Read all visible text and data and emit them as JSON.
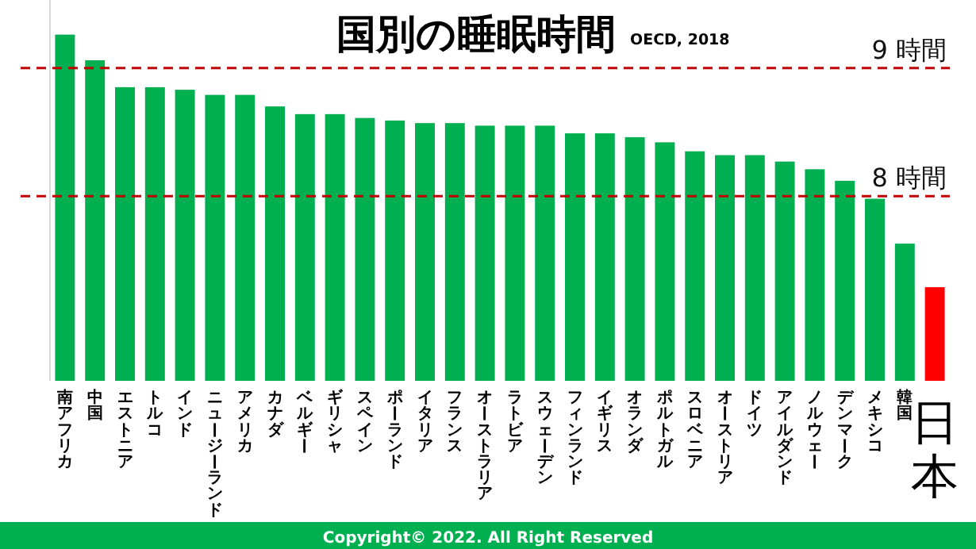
{
  "chart_data": {
    "type": "bar",
    "title": "国別の睡眠時間",
    "subtitle": "OECD, 2018",
    "categories": [
      "南アフリカ",
      "中国",
      "エストニア",
      "トルコ",
      "インド",
      "ニュージーランド",
      "アメリカ",
      "カナダ",
      "ベルギー",
      "ギリシャ",
      "スペイン",
      "ポーランド",
      "イタリア",
      "フランス",
      "オーストラリア",
      "ラトビア",
      "スウェーデン",
      "フィンランド",
      "イギリス",
      "オランダ",
      "ポルトガル",
      "スロベニア",
      "オーストリア",
      "ドイツ",
      "アイルダンド",
      "ノルウェー",
      "デンマーク",
      "メキシコ",
      "韓国",
      "日本"
    ],
    "values": [
      9.26,
      9.06,
      8.85,
      8.85,
      8.83,
      8.79,
      8.79,
      8.7,
      8.64,
      8.64,
      8.61,
      8.59,
      8.57,
      8.57,
      8.55,
      8.55,
      8.55,
      8.49,
      8.49,
      8.46,
      8.42,
      8.35,
      8.32,
      8.32,
      8.27,
      8.21,
      8.12,
      7.98,
      7.63,
      7.29
    ],
    "colors": [
      "#00b050",
      "#00b050",
      "#00b050",
      "#00b050",
      "#00b050",
      "#00b050",
      "#00b050",
      "#00b050",
      "#00b050",
      "#00b050",
      "#00b050",
      "#00b050",
      "#00b050",
      "#00b050",
      "#00b050",
      "#00b050",
      "#00b050",
      "#00b050",
      "#00b050",
      "#00b050",
      "#00b050",
      "#00b050",
      "#00b050",
      "#00b050",
      "#00b050",
      "#00b050",
      "#00b050",
      "#00b050",
      "#00b050",
      "#ff0000"
    ],
    "ylim": [
      6.56,
      9.53
    ],
    "tick_labels": "x",
    "ref_lines": [
      {
        "axis": "y",
        "value": 9,
        "label": "9 時間",
        "color": "#c00000",
        "line_style": "dashed"
      },
      {
        "axis": "y",
        "value": 8,
        "label": "8 時間",
        "color": "#c00000",
        "line_style": "dashed"
      }
    ],
    "annotations": [
      "Copyright© 2022. All Right Reserved"
    ]
  }
}
